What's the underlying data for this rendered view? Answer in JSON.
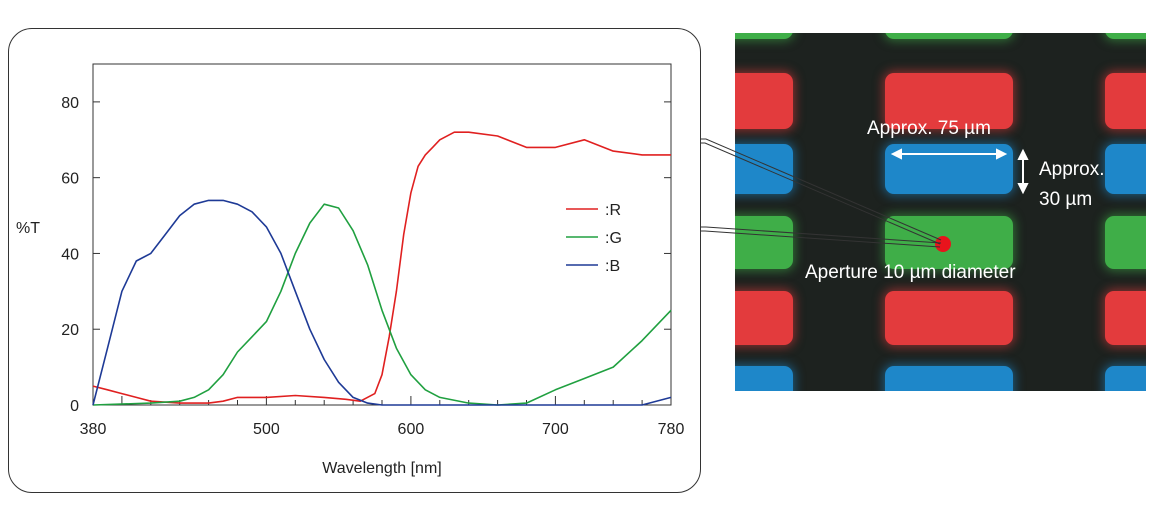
{
  "chart_data": {
    "type": "line",
    "xlabel": "Wavelength [nm]",
    "ylabel": "%T",
    "xlim": [
      380,
      780
    ],
    "ylim": [
      0,
      90
    ],
    "xticks": [
      380,
      500,
      600,
      700,
      780
    ],
    "yticks": [
      0,
      20,
      40,
      60,
      80
    ],
    "grid": false,
    "legend_position": "right",
    "series": [
      {
        "name": ":R",
        "color": "#e02020",
        "x": [
          380,
          390,
          400,
          410,
          420,
          440,
          460,
          470,
          480,
          500,
          520,
          540,
          555,
          565,
          575,
          580,
          585,
          590,
          595,
          600,
          605,
          610,
          615,
          620,
          630,
          640,
          660,
          680,
          700,
          720,
          740,
          760,
          780
        ],
        "y": [
          5,
          4,
          3,
          2,
          1,
          0.5,
          0.5,
          1,
          2,
          2,
          2.5,
          2,
          1.5,
          1,
          3,
          8,
          18,
          30,
          45,
          56,
          63,
          66,
          68,
          70,
          72,
          72,
          71,
          68,
          68,
          70,
          67,
          66,
          66
        ]
      },
      {
        "name": ":G",
        "color": "#20a040",
        "x": [
          380,
          420,
          440,
          450,
          460,
          470,
          480,
          490,
          500,
          510,
          520,
          530,
          540,
          550,
          560,
          570,
          580,
          590,
          600,
          610,
          620,
          640,
          660,
          680,
          700,
          720,
          740,
          760,
          780
        ],
        "y": [
          0,
          0.5,
          1,
          2,
          4,
          8,
          14,
          18,
          22,
          30,
          40,
          48,
          53,
          52,
          46,
          37,
          25,
          15,
          8,
          4,
          2,
          0.5,
          0,
          0.5,
          4,
          7,
          10,
          17,
          25
        ]
      },
      {
        "name": ":B",
        "color": "#1e3a96",
        "x": [
          380,
          390,
          400,
          410,
          420,
          430,
          440,
          450,
          460,
          470,
          480,
          490,
          500,
          510,
          520,
          530,
          540,
          550,
          560,
          570,
          580,
          600,
          650,
          700,
          760,
          780
        ],
        "y": [
          0,
          15,
          30,
          38,
          40,
          45,
          50,
          53,
          54,
          54,
          53,
          51,
          47,
          40,
          30,
          20,
          12,
          6,
          2,
          0.5,
          0,
          0,
          0,
          0,
          0,
          2
        ]
      }
    ]
  },
  "micrograph": {
    "width_label": "Approx. 75 µm",
    "height_label_line1": "Approx.",
    "height_label_line2": "30 µm",
    "aperture_label": "Aperture 10 µm diameter"
  }
}
